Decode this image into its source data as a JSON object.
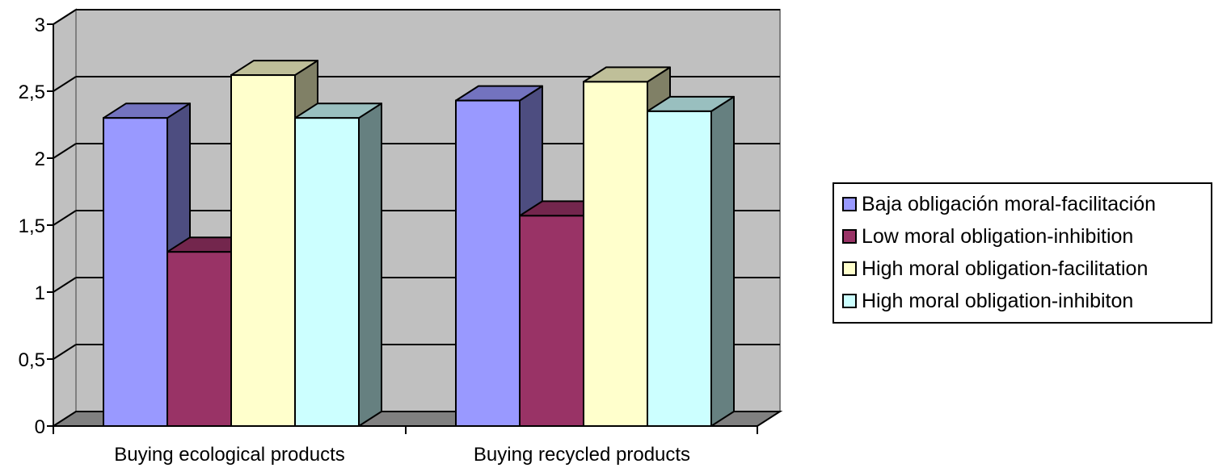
{
  "chart_data": {
    "type": "bar",
    "categories": [
      "Buying ecological products",
      "Buying recycled products"
    ],
    "series": [
      {
        "name": "Baja obligación moral-facilitación",
        "values": [
          2.3,
          2.43
        ],
        "color": "#9999ff",
        "side_color": "#4d4d80",
        "top_color": "#7373bf"
      },
      {
        "name": "Low moral obligation-inhibition",
        "values": [
          1.3,
          1.57
        ],
        "color": "#993366",
        "side_color": "#4d1a33",
        "top_color": "#73264d"
      },
      {
        "name": "High moral obligation-facilitation",
        "values": [
          2.62,
          2.57
        ],
        "color": "#ffffcc",
        "side_color": "#808066",
        "top_color": "#bfbf99"
      },
      {
        "name": "High moral obligation-inhibiton",
        "values": [
          2.3,
          2.35
        ],
        "color": "#ccffff",
        "side_color": "#668080",
        "top_color": "#99bfbf"
      }
    ],
    "y_ticks": [
      "0",
      "0,5",
      "1",
      "1,5",
      "2",
      "2,5",
      "3"
    ],
    "ylim": [
      0,
      3
    ],
    "grid": true,
    "legend_position": "right",
    "title": "",
    "xlabel": "",
    "ylabel": "",
    "colors": {
      "wall": "#c0c0c0",
      "floor": "#808080"
    }
  }
}
